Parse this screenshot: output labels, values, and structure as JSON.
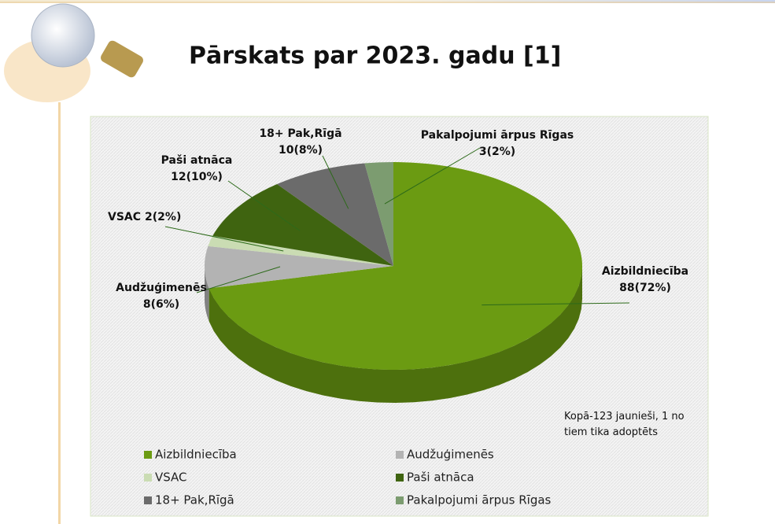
{
  "chart_data": {
    "type": "pie3d",
    "title": "Pārskats par 2023. gadu [1]",
    "categories": [
      "Aizbildniecība",
      "Audžuģimenēs",
      "VSAC",
      "Paši atnāca",
      "18+ Pak,Rīgā",
      "Pakalpojumi ārpus Rīgas"
    ],
    "values": [
      88,
      8,
      2,
      12,
      10,
      3
    ],
    "value_labels": [
      "88(72%)",
      "8(6%)",
      "2(2%)",
      "12(10%)",
      "10(8%)",
      "3(2%)"
    ],
    "colors": [
      "#6b9b12",
      "#b3b3b3",
      "#cadcb3",
      "#3f6410",
      "#6b6b6b",
      "#7c9c70"
    ],
    "annotation": "Kopā-123 jaunieši, 1 no tiem tika adoptēts",
    "legend": "bottom"
  }
}
